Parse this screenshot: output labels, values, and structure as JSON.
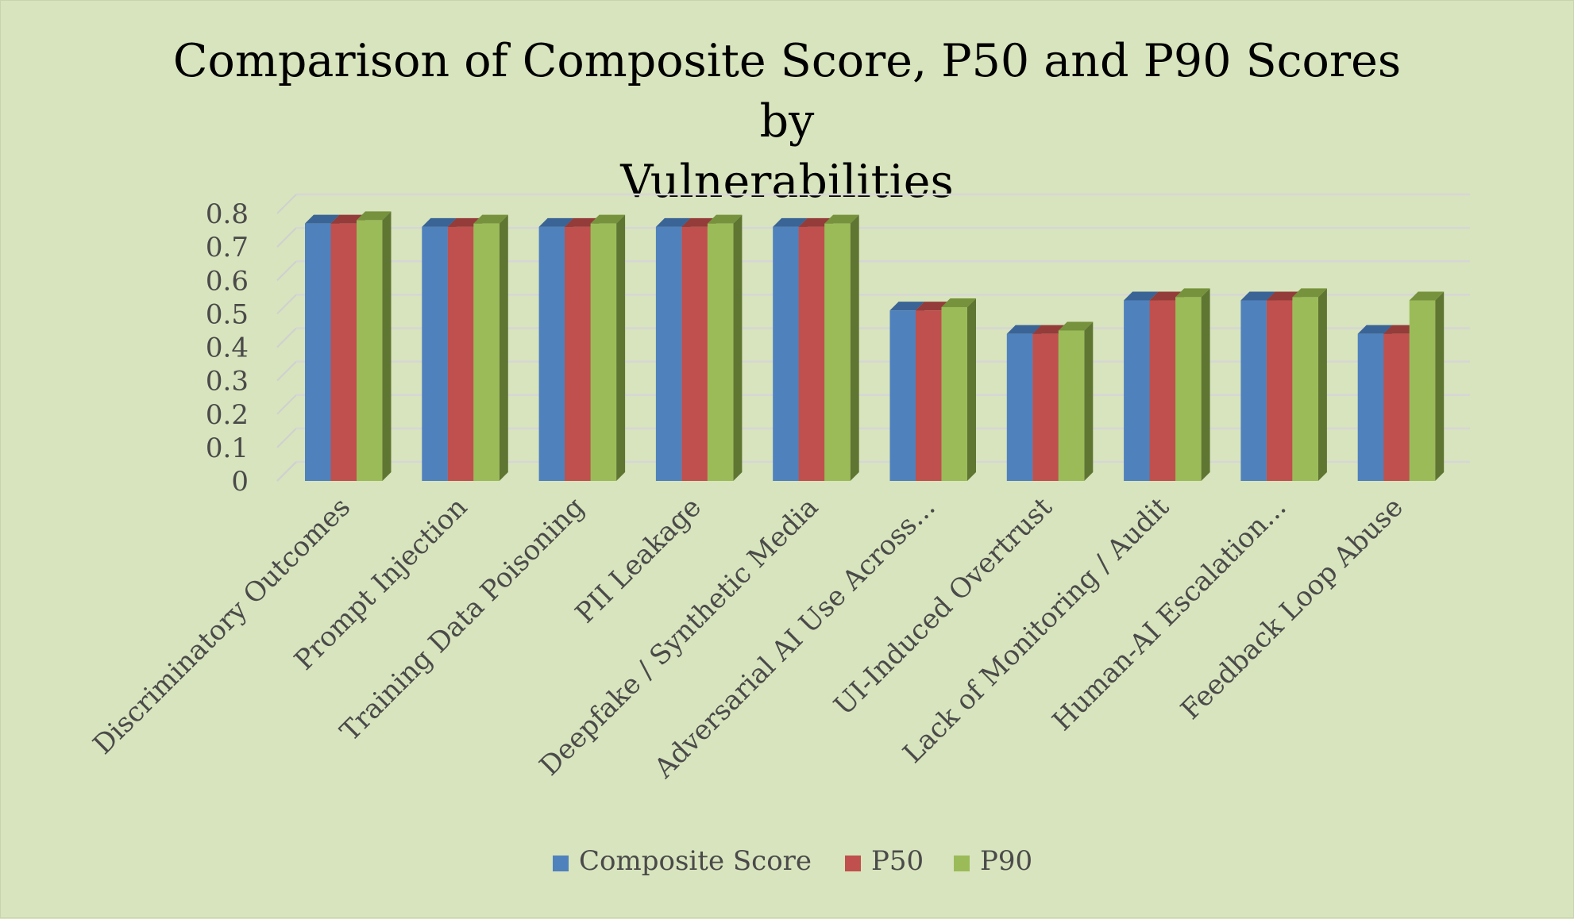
{
  "chart_data": {
    "type": "bar",
    "title": "Comparison of Composite Score, P50 and P90 Scores by Vulnerabilities",
    "title_lines": [
      "Comparison of Composite Score, P50 and P90 Scores by",
      "Vulnerabilities"
    ],
    "categories": [
      "Discriminatory Outcomes",
      "Prompt Injection",
      "Training Data Poisoning",
      "PII Leakage",
      "Deepfake / Synthetic Media",
      "Adversarial AI Use Across...",
      "UI-Induced Overtrust",
      "Lack of Monitoring / Audit",
      "Human-AI Escalation...",
      "Feedback Loop Abuse"
    ],
    "series": [
      {
        "name": "Composite Score",
        "color": "#4f81bd",
        "side_color": "#2c4d75",
        "top_color": "#3a6496",
        "values": [
          0.77,
          0.76,
          0.76,
          0.76,
          0.76,
          0.51,
          0.44,
          0.54,
          0.54,
          0.44
        ]
      },
      {
        "name": "P50",
        "color": "#c0504d",
        "side_color": "#7b2e2c",
        "top_color": "#943c3a",
        "values": [
          0.77,
          0.76,
          0.76,
          0.76,
          0.76,
          0.51,
          0.44,
          0.54,
          0.54,
          0.44
        ]
      },
      {
        "name": "P90",
        "color": "#9bbb59",
        "side_color": "#5f7632",
        "top_color": "#76923c",
        "values": [
          0.78,
          0.77,
          0.77,
          0.77,
          0.77,
          0.52,
          0.45,
          0.55,
          0.55,
          0.54
        ]
      }
    ],
    "y_ticks": [
      "0",
      "0.1",
      "0.2",
      "0.3",
      "0.4",
      "0.5",
      "0.6",
      "0.7",
      "0.8"
    ],
    "ylim": [
      0,
      0.8
    ],
    "grid": true,
    "legend_position": "bottom",
    "style": "3d-clustered-column",
    "background": "#d8e4bd"
  }
}
